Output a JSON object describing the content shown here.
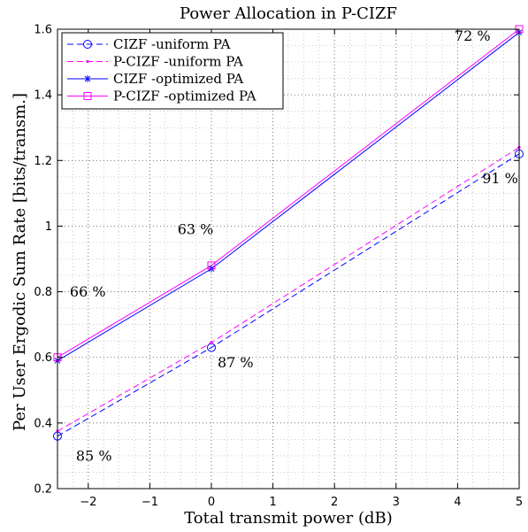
{
  "chart_data": {
    "type": "line",
    "title": "Power Allocation in P-CIZF",
    "xlabel": "Total transmit power (dB)",
    "ylabel": "Per User Ergodic Sum Rate [bits/transm.]",
    "xlim": [
      -2.5,
      5
    ],
    "ylim": [
      0.2,
      1.6
    ],
    "xticks": [
      -2,
      -1,
      0,
      1,
      2,
      3,
      4,
      5
    ],
    "yticks": [
      0.2,
      0.4,
      0.6,
      0.8,
      1,
      1.2,
      1.4,
      1.6
    ],
    "x": [
      -2.5,
      0,
      5
    ],
    "grid": true,
    "legend_position": "top-left",
    "series": [
      {
        "name": "CIZF -uniform PA",
        "values": [
          0.36,
          0.63,
          1.22
        ],
        "color": "#0000ff",
        "line": "dashed",
        "marker": "circle"
      },
      {
        "name": "P-CIZF -uniform PA",
        "values": [
          0.375,
          0.645,
          1.24
        ],
        "color": "#ff00ff",
        "line": "dashed",
        "marker": "point"
      },
      {
        "name": "CIZF -optimized PA",
        "values": [
          0.59,
          0.87,
          1.59
        ],
        "color": "#0000ff",
        "line": "solid",
        "marker": "star"
      },
      {
        "name": "P-CIZF -optimized PA",
        "values": [
          0.6,
          0.88,
          1.6
        ],
        "color": "#ff00ff",
        "line": "solid",
        "marker": "square"
      }
    ],
    "annotations": [
      {
        "text": "85 %",
        "x": -2.2,
        "y": 0.285
      },
      {
        "text": "87 %",
        "x": 0.1,
        "y": 0.57
      },
      {
        "text": "91 %",
        "x": 4.4,
        "y": 1.13
      },
      {
        "text": "66 %",
        "x": -2.3,
        "y": 0.785
      },
      {
        "text": "63 %",
        "x": -0.55,
        "y": 0.975
      },
      {
        "text": "72 %",
        "x": 3.95,
        "y": 1.565
      }
    ]
  }
}
